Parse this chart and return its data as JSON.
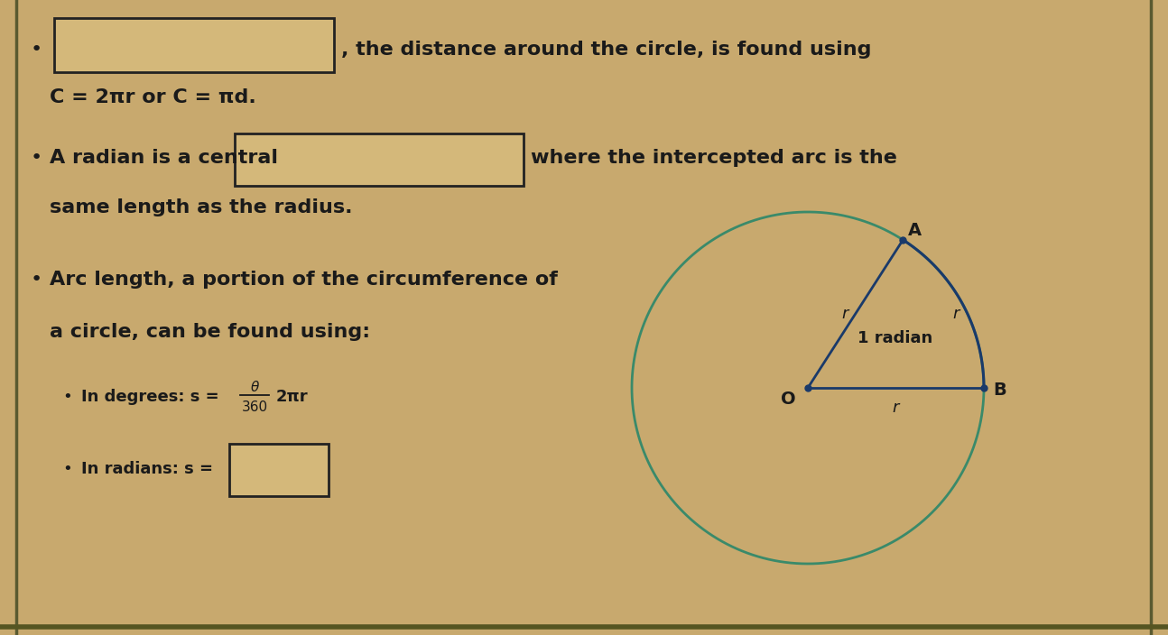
{
  "bg_color": "#c8a96e",
  "text_color": "#1a1a1a",
  "box_fill": "#d4b87a",
  "box_border": "#222222",
  "circle_color": "#3a8a6a",
  "line_color": "#1a3a6a",
  "arc_color": "#1a3a6a",
  "font_size_main": 16,
  "font_size_small": 13,
  "font_size_diag": 13,
  "bullet1_text": ", the distance around the circle, is found using",
  "bullet1_sub": "C = 2πr or C = πd.",
  "bullet2_pre": "A radian is a central",
  "bullet2_post": "where the intercepted arc is the",
  "bullet2_sub": "same length as the radius.",
  "bullet3_line1": "Arc length, a portion of the circumference of",
  "bullet3_line2": "a circle, can be found using:",
  "deg_pre": "In degrees: s = ",
  "deg_theta": "θ",
  "deg_denom": "360",
  "deg_post": "2πr",
  "rad_pre": "In radians: s =",
  "diag_A": "A",
  "diag_B": "B",
  "diag_O": "O",
  "diag_r_OA": "r",
  "diag_r_AB": "r",
  "diag_r_OB": "r",
  "diag_radian": "1 radian",
  "border_color": "#5a5a30"
}
